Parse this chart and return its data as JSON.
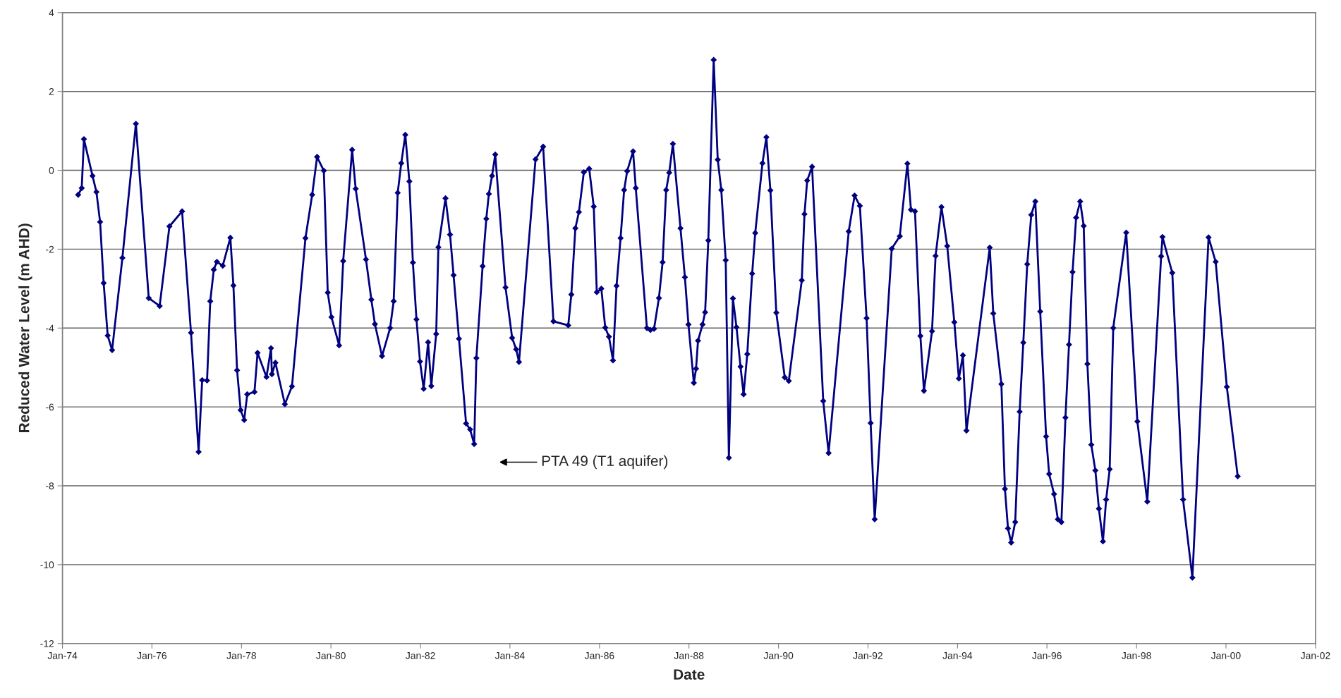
{
  "chart_data": {
    "type": "line",
    "xlabel": "Date",
    "ylabel": "Reduced Water Level (m AHD)",
    "annotations": [
      "PTA 49 (T1 aquifer)"
    ],
    "xlim": [
      "1974-01-01",
      "2002-01-01"
    ],
    "xticks": [
      {
        "value": "1974-01-01",
        "label": "Jan-74"
      },
      {
        "value": "1976-01-01",
        "label": "Jan-76"
      },
      {
        "value": "1978-01-01",
        "label": "Jan-78"
      },
      {
        "value": "1980-01-01",
        "label": "Jan-80"
      },
      {
        "value": "1982-01-01",
        "label": "Jan-82"
      },
      {
        "value": "1984-01-01",
        "label": "Jan-84"
      },
      {
        "value": "1986-01-01",
        "label": "Jan-86"
      },
      {
        "value": "1988-01-01",
        "label": "Jan-88"
      },
      {
        "value": "1990-01-01",
        "label": "Jan-90"
      },
      {
        "value": "1992-01-01",
        "label": "Jan-92"
      },
      {
        "value": "1994-01-01",
        "label": "Jan-94"
      },
      {
        "value": "1996-01-01",
        "label": "Jan-96"
      },
      {
        "value": "1998-01-01",
        "label": "Jan-98"
      },
      {
        "value": "2000-01-01",
        "label": "Jan-00"
      },
      {
        "value": "2002-01-01",
        "label": "Jan-02"
      }
    ],
    "ylim": [
      -12,
      4
    ],
    "yticks": [
      -12,
      -10,
      -8,
      -6,
      -4,
      -2,
      0,
      2,
      4
    ],
    "grid": "y",
    "marker": "diamond",
    "line_style": "solid",
    "series": [
      {
        "color": "#000080",
        "x": [
          "1974-05-09",
          "1974-06-07",
          "1974-06-25",
          "1974-09-03",
          "1974-10-05",
          "1974-11-04",
          "1974-12-03",
          "1975-01-05",
          "1975-02-10",
          "1975-05-05",
          "1975-08-23",
          "1975-12-06",
          "1976-03-04",
          "1976-05-23",
          "1976-09-03",
          "1976-11-15",
          "1977-01-16",
          "1977-02-14",
          "1977-03-26",
          "1977-04-21",
          "1977-05-20",
          "1977-06-14",
          "1977-08-01",
          "1977-10-02",
          "1977-10-27",
          "1977-11-26",
          "1977-12-25",
          "1978-01-23",
          "1978-02-17",
          "1978-04-17",
          "1978-05-12",
          "1978-07-24",
          "1978-08-30",
          "1978-09-06",
          "1978-10-05",
          "1978-12-21",
          "1979-02-17",
          "1979-06-07",
          "1979-08-01",
          "1979-09-10",
          "1979-11-04",
          "1979-12-06",
          "1980-01-05",
          "1980-03-08",
          "1980-04-10",
          "1980-06-22",
          "1980-07-21",
          "1980-10-13",
          "1980-11-26",
          "1980-12-25",
          "1981-02-21",
          "1981-04-28",
          "1981-05-27",
          "1981-06-29",
          "1981-07-28",
          "1981-08-30",
          "1981-10-02",
          "1981-10-31",
          "1981-11-29",
          "1981-12-28",
          "1982-01-27",
          "1982-03-04",
          "1982-03-30",
          "1982-05-09",
          "1982-05-27",
          "1982-07-24",
          "1982-08-30",
          "1982-09-28",
          "1982-11-11",
          "1983-01-08",
          "1983-02-10",
          "1983-03-15",
          "1983-04-02",
          "1983-05-23",
          "1983-06-22",
          "1983-07-13",
          "1983-08-08",
          "1983-09-03",
          "1983-11-26",
          "1984-01-19",
          "1984-02-21",
          "1984-03-15",
          "1984-07-28",
          "1984-09-28",
          "1984-12-21",
          "1985-04-21",
          "1985-05-16",
          "1985-06-18",
          "1985-07-17",
          "1985-08-26",
          "1985-10-09",
          "1985-11-15",
          "1985-12-10",
          "1986-01-16",
          "1986-02-17",
          "1986-03-19",
          "1986-04-21",
          "1986-05-20",
          "1986-06-22",
          "1986-07-21",
          "1986-08-15",
          "1986-10-02",
          "1986-10-24",
          "1987-01-23",
          "1987-02-21",
          "1987-03-22",
          "1987-05-01",
          "1987-05-31",
          "1987-06-29",
          "1987-07-24",
          "1987-08-23",
          "1987-10-24",
          "1987-11-29",
          "1987-12-28",
          "1988-02-10",
          "1988-02-28",
          "1988-03-15",
          "1988-04-21",
          "1988-05-12",
          "1988-06-07",
          "1988-07-21",
          "1988-08-23",
          "1988-09-21",
          "1988-10-27",
          "1988-11-22",
          "1988-12-25",
          "1989-01-23",
          "1989-02-25",
          "1989-03-22",
          "1989-04-21",
          "1989-05-31",
          "1989-06-25",
          "1989-08-23",
          "1989-09-24",
          "1989-10-27",
          "1989-12-14",
          "1990-02-21",
          "1990-03-26",
          "1990-07-10",
          "1990-08-01",
          "1990-08-23",
          "1990-10-02",
          "1991-01-01",
          "1991-02-14",
          "1991-07-28",
          "1991-09-14",
          "1991-10-27",
          "1991-12-21",
          "1992-01-23",
          "1992-02-25",
          "1992-07-13",
          "1992-09-17",
          "1992-11-18",
          "1992-12-17",
          "1993-01-19",
          "1993-03-04",
          "1993-04-02",
          "1993-06-07",
          "1993-07-06",
          "1993-08-23",
          "1993-10-09",
          "1993-12-06",
          "1994-01-12",
          "1994-02-14",
          "1994-03-15",
          "1994-09-21",
          "1994-10-20",
          "1994-12-25",
          "1995-01-23",
          "1995-02-17",
          "1995-03-15",
          "1995-04-17",
          "1995-05-23",
          "1995-06-22",
          "1995-07-24",
          "1995-08-26",
          "1995-09-28",
          "1995-11-07",
          "1995-12-25",
          "1996-01-19",
          "1996-02-28",
          "1996-03-30",
          "1996-04-28",
          "1996-05-31",
          "1996-06-29",
          "1996-07-28",
          "1996-08-26",
          "1996-09-28",
          "1996-10-27",
          "1996-11-26",
          "1996-12-28",
          "1997-01-30",
          "1997-02-28",
          "1997-04-02",
          "1997-04-28",
          "1997-05-27",
          "1997-06-25",
          "1997-10-09",
          "1998-01-08",
          "1998-03-30",
          "1998-07-21",
          "1998-08-01",
          "1998-10-20",
          "1999-01-16",
          "1999-04-02",
          "1999-08-12",
          "1999-10-09",
          "2000-01-08",
          "2000-04-06"
        ],
        "values": [
          -0.62,
          -0.45,
          0.79,
          -0.14,
          -0.55,
          -1.31,
          -2.86,
          -4.19,
          -4.56,
          -2.22,
          1.18,
          -3.24,
          -3.44,
          -1.42,
          -1.04,
          -4.12,
          -7.14,
          -5.32,
          -5.33,
          -3.32,
          -2.52,
          -2.32,
          -2.42,
          -1.71,
          -2.92,
          -5.07,
          -6.08,
          -6.33,
          -5.68,
          -5.62,
          -4.63,
          -5.24,
          -4.51,
          -5.17,
          -4.88,
          -5.93,
          -5.48,
          -1.72,
          -0.62,
          0.34,
          -0.01,
          -3.1,
          -3.72,
          -4.44,
          -2.3,
          0.52,
          -0.47,
          -2.26,
          -3.28,
          -3.9,
          -4.71,
          -4.0,
          -3.32,
          -0.57,
          0.18,
          0.9,
          -0.28,
          -2.34,
          -3.78,
          -4.85,
          -5.54,
          -4.36,
          -5.47,
          -4.15,
          -1.95,
          -0.71,
          -1.63,
          -2.66,
          -4.27,
          -6.42,
          -6.57,
          -6.94,
          -4.76,
          -2.43,
          -1.23,
          -0.6,
          -0.14,
          0.4,
          -2.97,
          -4.25,
          -4.54,
          -4.86,
          0.28,
          0.6,
          -3.83,
          -3.93,
          -3.15,
          -1.47,
          -1.06,
          -0.05,
          0.04,
          -0.92,
          -3.09,
          -3.0,
          -3.99,
          -4.22,
          -4.82,
          -2.93,
          -1.72,
          -0.5,
          -0.02,
          0.48,
          -0.45,
          -4.0,
          -4.05,
          -4.02,
          -3.24,
          -2.33,
          -0.5,
          -0.06,
          0.67,
          -1.47,
          -2.71,
          -3.91,
          -5.39,
          -5.03,
          -4.32,
          -3.91,
          -3.6,
          -1.78,
          2.8,
          0.27,
          -0.5,
          -2.28,
          -7.29,
          -3.25,
          -3.98,
          -4.98,
          -5.68,
          -4.66,
          -2.62,
          -1.59,
          0.18,
          0.84,
          -0.51,
          -3.61,
          -5.25,
          -5.34,
          -2.79,
          -1.11,
          -0.26,
          0.09,
          -5.85,
          -7.17,
          -1.55,
          -0.64,
          -0.9,
          -3.75,
          -6.41,
          -8.85,
          -1.99,
          -1.67,
          0.17,
          -1.0,
          -1.04,
          -4.2,
          -5.59,
          -4.08,
          -2.17,
          -0.93,
          -1.92,
          -3.85,
          -5.28,
          -4.69,
          -6.6,
          -1.96,
          -3.63,
          -5.42,
          -8.08,
          -9.08,
          -9.44,
          -8.92,
          -6.12,
          -4.37,
          -2.38,
          -1.13,
          -0.79,
          -3.58,
          -6.75,
          -7.7,
          -8.21,
          -8.85,
          -8.92,
          -6.27,
          -4.42,
          -2.58,
          -1.2,
          -0.79,
          -1.41,
          -4.91,
          -6.96,
          -7.61,
          -8.58,
          -9.41,
          -8.35,
          -7.58,
          -4.0,
          -1.58,
          -6.37,
          -8.4,
          -2.18,
          -1.69,
          -2.6,
          -8.35,
          -10.33,
          -1.7,
          -2.32,
          -5.49,
          -7.76
        ]
      }
    ]
  }
}
